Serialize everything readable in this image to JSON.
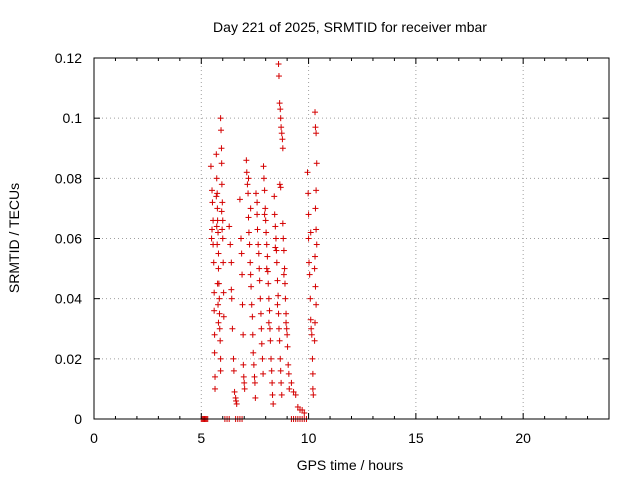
{
  "chart_data": {
    "type": "scatter",
    "title": "Day 221 of 2025, SRMTID for receiver mbar",
    "xlabel": "GPS time / hours",
    "ylabel": "SRMTID / TECUs",
    "xlim": [
      0,
      24
    ],
    "ylim": [
      0,
      0.12
    ],
    "xticks": [
      0,
      5,
      10,
      15,
      20
    ],
    "xtick_labels": [
      "0",
      "5",
      "10",
      "15",
      "20"
    ],
    "yticks": [
      0,
      0.02,
      0.04,
      0.06,
      0.08,
      0.1,
      0.12
    ],
    "ytick_labels": [
      "0",
      "0.02",
      "0.04",
      "0.06",
      "0.08",
      "0.1",
      "0.12"
    ],
    "grid": true,
    "marker": "+",
    "color": "#d40000",
    "series": [
      {
        "name": "SRMTID",
        "points": [
          [
            5.0,
            0
          ],
          [
            5.05,
            0
          ],
          [
            5.1,
            0
          ],
          [
            5.15,
            0
          ],
          [
            5.2,
            0
          ],
          [
            5.25,
            0
          ],
          [
            5.3,
            0
          ],
          [
            6.1,
            0
          ],
          [
            6.2,
            0
          ],
          [
            6.3,
            0
          ],
          [
            6.6,
            0
          ],
          [
            6.7,
            0
          ],
          [
            6.8,
            0
          ],
          [
            6.9,
            0
          ],
          [
            9.2,
            0
          ],
          [
            9.3,
            0
          ],
          [
            9.4,
            0
          ],
          [
            9.5,
            0
          ],
          [
            9.6,
            0
          ],
          [
            9.7,
            0
          ],
          [
            9.8,
            0
          ],
          [
            9.9,
            0
          ],
          [
            5.45,
            0.084
          ],
          [
            5.5,
            0.076
          ],
          [
            5.52,
            0.072
          ],
          [
            5.55,
            0.066
          ],
          [
            5.55,
            0.058
          ],
          [
            5.58,
            0.052
          ],
          [
            5.6,
            0.042
          ],
          [
            5.6,
            0.036
          ],
          [
            5.62,
            0.028
          ],
          [
            5.62,
            0.022
          ],
          [
            5.64,
            0.014
          ],
          [
            5.64,
            0.01
          ],
          [
            5.5,
            0.063
          ],
          [
            5.48,
            0.06
          ],
          [
            5.7,
            0.088
          ],
          [
            5.72,
            0.08
          ],
          [
            5.74,
            0.075
          ],
          [
            5.75,
            0.07
          ],
          [
            5.76,
            0.066
          ],
          [
            5.78,
            0.062
          ],
          [
            5.8,
            0.055
          ],
          [
            5.8,
            0.05
          ],
          [
            5.82,
            0.045
          ],
          [
            5.84,
            0.04
          ],
          [
            5.85,
            0.035
          ],
          [
            5.86,
            0.03
          ],
          [
            5.88,
            0.026
          ],
          [
            5.9,
            0.02
          ],
          [
            5.9,
            0.016
          ],
          [
            5.7,
            0.074
          ],
          [
            5.72,
            0.064
          ],
          [
            5.74,
            0.058
          ],
          [
            5.76,
            0.045
          ],
          [
            5.78,
            0.038
          ],
          [
            5.8,
            0.032
          ],
          [
            5.9,
            0.1
          ],
          [
            5.92,
            0.096
          ],
          [
            5.94,
            0.09
          ],
          [
            5.95,
            0.085
          ],
          [
            5.96,
            0.078
          ],
          [
            5.98,
            0.072
          ],
          [
            6.0,
            0.066
          ],
          [
            6.0,
            0.06
          ],
          [
            6.02,
            0.052
          ],
          [
            6.04,
            0.042
          ],
          [
            6.05,
            0.034
          ],
          [
            5.95,
            0.069
          ],
          [
            5.97,
            0.063
          ],
          [
            6.3,
            0.064
          ],
          [
            6.35,
            0.058
          ],
          [
            6.4,
            0.043
          ],
          [
            6.42,
            0.04
          ],
          [
            6.45,
            0.03
          ],
          [
            6.5,
            0.02
          ],
          [
            6.52,
            0.016
          ],
          [
            6.55,
            0.009
          ],
          [
            6.6,
            0.007
          ],
          [
            6.62,
            0.006
          ],
          [
            6.65,
            0.005
          ],
          [
            6.4,
            0.052
          ],
          [
            6.8,
            0.073
          ],
          [
            6.85,
            0.06
          ],
          [
            6.88,
            0.055
          ],
          [
            6.9,
            0.048
          ],
          [
            6.92,
            0.038
          ],
          [
            6.95,
            0.028
          ],
          [
            6.96,
            0.018
          ],
          [
            6.98,
            0.014
          ],
          [
            7.0,
            0.012
          ],
          [
            7.02,
            0.01
          ],
          [
            7.1,
            0.086
          ],
          [
            7.12,
            0.082
          ],
          [
            7.15,
            0.078
          ],
          [
            7.18,
            0.075
          ],
          [
            7.2,
            0.067
          ],
          [
            7.22,
            0.062
          ],
          [
            7.25,
            0.058
          ],
          [
            7.28,
            0.052
          ],
          [
            7.3,
            0.048
          ],
          [
            7.32,
            0.044
          ],
          [
            7.35,
            0.038
          ],
          [
            7.38,
            0.034
          ],
          [
            7.4,
            0.028
          ],
          [
            7.42,
            0.022
          ],
          [
            7.45,
            0.018
          ],
          [
            7.48,
            0.014
          ],
          [
            7.5,
            0.012
          ],
          [
            7.52,
            0.007
          ],
          [
            7.2,
            0.08
          ],
          [
            7.3,
            0.07
          ],
          [
            7.55,
            0.075
          ],
          [
            7.6,
            0.068
          ],
          [
            7.62,
            0.063
          ],
          [
            7.65,
            0.058
          ],
          [
            7.68,
            0.055
          ],
          [
            7.7,
            0.05
          ],
          [
            7.72,
            0.046
          ],
          [
            7.75,
            0.04
          ],
          [
            7.78,
            0.035
          ],
          [
            7.8,
            0.03
          ],
          [
            7.82,
            0.025
          ],
          [
            7.85,
            0.02
          ],
          [
            7.88,
            0.015
          ],
          [
            7.6,
            0.072
          ],
          [
            7.9,
            0.084
          ],
          [
            7.92,
            0.08
          ],
          [
            7.95,
            0.076
          ],
          [
            7.98,
            0.07
          ],
          [
            8.0,
            0.066
          ],
          [
            8.02,
            0.062
          ],
          [
            8.05,
            0.058
          ],
          [
            8.08,
            0.054
          ],
          [
            8.1,
            0.049
          ],
          [
            8.12,
            0.045
          ],
          [
            8.15,
            0.04
          ],
          [
            8.18,
            0.036
          ],
          [
            8.2,
            0.03
          ],
          [
            8.22,
            0.026
          ],
          [
            8.25,
            0.02
          ],
          [
            8.28,
            0.016
          ],
          [
            8.3,
            0.012
          ],
          [
            8.32,
            0.008
          ],
          [
            8.35,
            0.005
          ],
          [
            7.95,
            0.068
          ],
          [
            8.05,
            0.05
          ],
          [
            8.15,
            0.032
          ],
          [
            8.4,
            0.074
          ],
          [
            8.42,
            0.068
          ],
          [
            8.45,
            0.064
          ],
          [
            8.48,
            0.06
          ],
          [
            8.5,
            0.056
          ],
          [
            8.52,
            0.052
          ],
          [
            8.55,
            0.046
          ],
          [
            8.58,
            0.041
          ],
          [
            8.6,
            0.035
          ],
          [
            8.62,
            0.03
          ],
          [
            8.65,
            0.026
          ],
          [
            8.68,
            0.02
          ],
          [
            8.7,
            0.016
          ],
          [
            8.72,
            0.012
          ],
          [
            8.75,
            0.008
          ],
          [
            8.45,
            0.057
          ],
          [
            8.55,
            0.038
          ],
          [
            8.6,
            0.118
          ],
          [
            8.62,
            0.114
          ],
          [
            8.65,
            0.105
          ],
          [
            8.68,
            0.103
          ],
          [
            8.7,
            0.1
          ],
          [
            8.72,
            0.097
          ],
          [
            8.75,
            0.095
          ],
          [
            8.78,
            0.093
          ],
          [
            8.8,
            0.09
          ],
          [
            8.66,
            0.078
          ],
          [
            8.7,
            0.077
          ],
          [
            8.8,
            0.065
          ],
          [
            8.82,
            0.06
          ],
          [
            8.85,
            0.056
          ],
          [
            8.88,
            0.05
          ],
          [
            8.9,
            0.045
          ],
          [
            8.92,
            0.04
          ],
          [
            8.95,
            0.035
          ],
          [
            8.98,
            0.03
          ],
          [
            9.0,
            0.028
          ],
          [
            9.02,
            0.024
          ],
          [
            9.05,
            0.018
          ],
          [
            9.08,
            0.015
          ],
          [
            9.1,
            0.01
          ],
          [
            8.85,
            0.048
          ],
          [
            8.95,
            0.032
          ],
          [
            9.2,
            0.012
          ],
          [
            9.3,
            0.009
          ],
          [
            9.4,
            0.008
          ],
          [
            9.5,
            0.004
          ],
          [
            9.6,
            0.003
          ],
          [
            9.7,
            0.003
          ],
          [
            9.8,
            0.002
          ],
          [
            9.95,
            0.082
          ],
          [
            9.98,
            0.075
          ],
          [
            10.0,
            0.06
          ],
          [
            10.02,
            0.052
          ],
          [
            10.05,
            0.048
          ],
          [
            10.08,
            0.04
          ],
          [
            10.1,
            0.033
          ],
          [
            10.12,
            0.03
          ],
          [
            10.15,
            0.028
          ],
          [
            10.18,
            0.02
          ],
          [
            10.2,
            0.015
          ],
          [
            10.2,
            0.01
          ],
          [
            10.22,
            0.008
          ],
          [
            10.0,
            0.068
          ],
          [
            10.1,
            0.062
          ],
          [
            10.3,
            0.102
          ],
          [
            10.32,
            0.097
          ],
          [
            10.35,
            0.095
          ],
          [
            10.38,
            0.085
          ],
          [
            10.35,
            0.076
          ],
          [
            10.32,
            0.07
          ],
          [
            10.35,
            0.063
          ],
          [
            10.38,
            0.058
          ],
          [
            10.3,
            0.054
          ],
          [
            10.28,
            0.05
          ],
          [
            10.32,
            0.044
          ],
          [
            10.35,
            0.038
          ],
          [
            10.3,
            0.032
          ],
          [
            10.28,
            0.026
          ]
        ]
      }
    ]
  }
}
